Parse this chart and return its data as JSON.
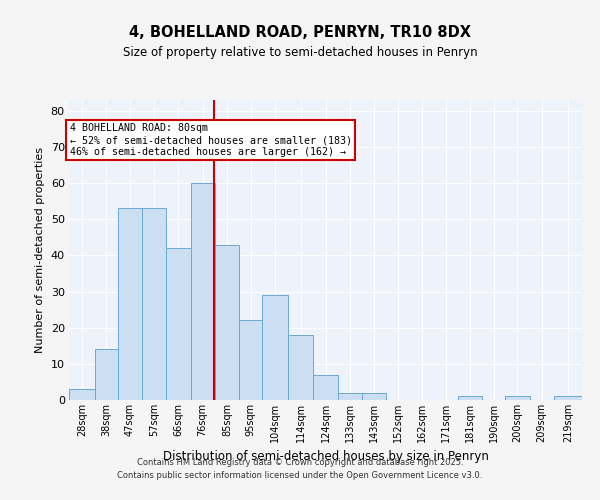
{
  "title1": "4, BOHELLAND ROAD, PENRYN, TR10 8DX",
  "title2": "Size of property relative to semi-detached houses in Penryn",
  "xlabel": "Distribution of semi-detached houses by size in Penryn",
  "ylabel": "Number of semi-detached properties",
  "bin_labels": [
    "28sqm",
    "38sqm",
    "47sqm",
    "57sqm",
    "66sqm",
    "76sqm",
    "85sqm",
    "95sqm",
    "104sqm",
    "114sqm",
    "124sqm",
    "133sqm",
    "143sqm",
    "152sqm",
    "162sqm",
    "171sqm",
    "181sqm",
    "190sqm",
    "200sqm",
    "209sqm",
    "219sqm"
  ],
  "bin_edges": [
    23.5,
    33.5,
    42.5,
    52.0,
    61.5,
    71.0,
    80.5,
    90.0,
    99.0,
    109.0,
    119.0,
    128.5,
    138.0,
    147.5,
    157.0,
    166.0,
    175.5,
    185.0,
    194.0,
    203.5,
    213.0,
    224.0
  ],
  "counts": [
    3,
    14,
    53,
    53,
    42,
    60,
    43,
    22,
    29,
    18,
    7,
    2,
    2,
    0,
    0,
    0,
    1,
    0,
    1,
    0,
    1
  ],
  "bar_color": "#ccdff2",
  "bar_edge_color": "#6aaad4",
  "property_size": 80,
  "red_line_color": "#cc0000",
  "annotation_line1": "4 BOHELLAND ROAD: 80sqm",
  "annotation_line2": "← 52% of semi-detached houses are smaller (183)",
  "annotation_line3": "46% of semi-detached houses are larger (162) →",
  "annotation_box_color": "#ffffff",
  "annotation_box_edge": "#cc0000",
  "ylim": [
    0,
    83
  ],
  "yticks": [
    0,
    10,
    20,
    30,
    40,
    50,
    60,
    70,
    80
  ],
  "fig_bg": "#f5f5f5",
  "plot_bg": "#eef3fb",
  "grid_color": "#ffffff",
  "footer_line1": "Contains HM Land Registry data © Crown copyright and database right 2025.",
  "footer_line2": "Contains public sector information licensed under the Open Government Licence v3.0."
}
